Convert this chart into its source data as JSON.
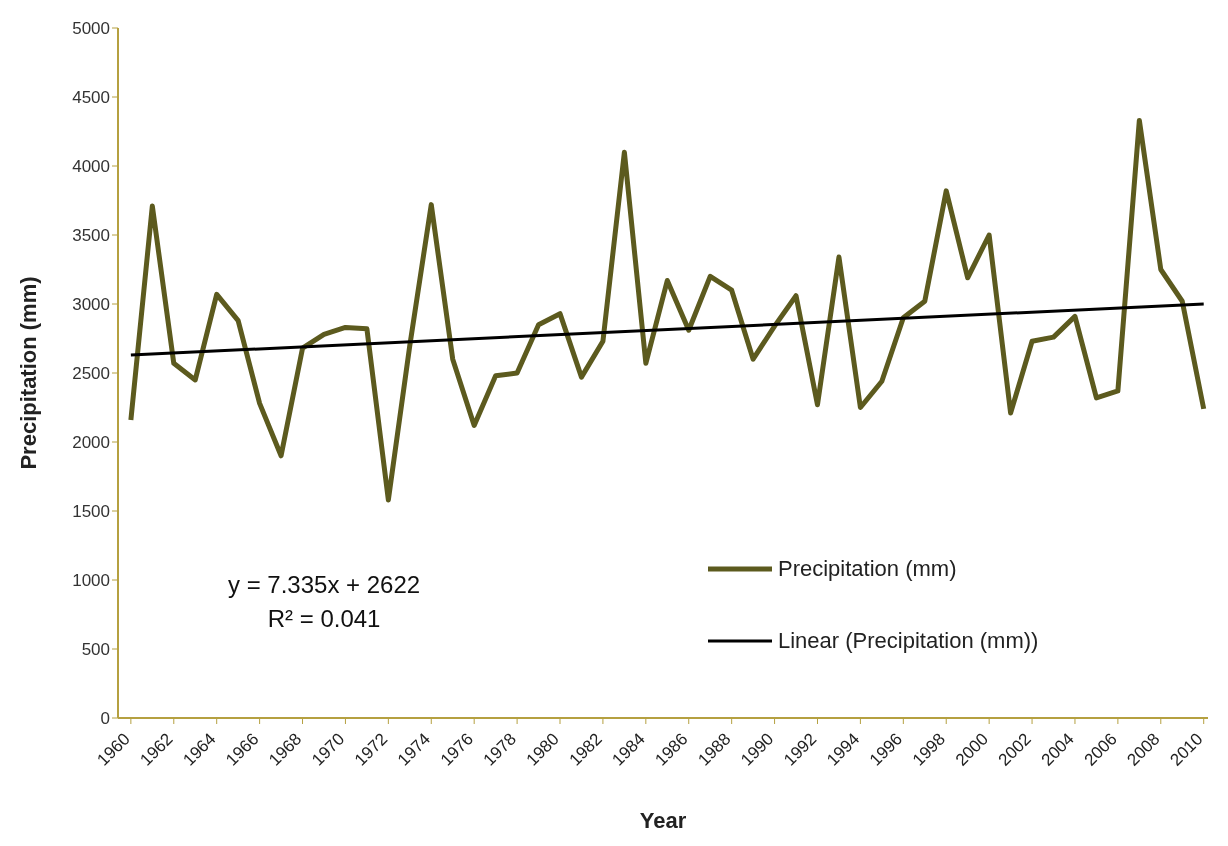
{
  "chart_data": {
    "type": "line",
    "xlabel": "Year",
    "ylabel": "Precipitation (mm)",
    "x": [
      1960,
      1961,
      1962,
      1963,
      1964,
      1965,
      1966,
      1967,
      1968,
      1969,
      1970,
      1971,
      1972,
      1973,
      1974,
      1975,
      1976,
      1977,
      1978,
      1979,
      1980,
      1981,
      1982,
      1983,
      1984,
      1985,
      1986,
      1987,
      1988,
      1989,
      1990,
      1991,
      1992,
      1993,
      1994,
      1995,
      1996,
      1997,
      1998,
      1999,
      2000,
      2001,
      2002,
      2003,
      2004,
      2005,
      2006,
      2007,
      2008,
      2009,
      2010
    ],
    "series": [
      {
        "name": "Precipitation (mm)",
        "color": "#5c5a1e",
        "values": [
          2160,
          3710,
          2570,
          2450,
          3070,
          2880,
          2280,
          1900,
          2680,
          2780,
          2830,
          2820,
          1580,
          2700,
          3720,
          2600,
          2120,
          2480,
          2500,
          2850,
          2930,
          2470,
          2730,
          4100,
          2570,
          3170,
          2810,
          3200,
          3100,
          2600,
          2840,
          3060,
          2270,
          3340,
          2250,
          2440,
          2900,
          3020,
          3820,
          3190,
          3500,
          2210,
          2730,
          2760,
          2910,
          2320,
          2370,
          4330,
          3250,
          3020,
          2240
        ]
      },
      {
        "name": "Linear (Precipitation (mm))",
        "type": "line",
        "color": "#000000",
        "x": [
          1960,
          2010
        ],
        "values": [
          2630,
          3000
        ]
      }
    ],
    "xlim": [
      1959.4,
      2010.2
    ],
    "xticks": [
      1960,
      1962,
      1964,
      1966,
      1968,
      1970,
      1972,
      1974,
      1976,
      1978,
      1980,
      1982,
      1984,
      1986,
      1988,
      1990,
      1992,
      1994,
      1996,
      1998,
      2000,
      2002,
      2004,
      2006,
      2008,
      2010
    ],
    "ylim": [
      0,
      5000
    ],
    "yticks": [
      0,
      500,
      1000,
      1500,
      2000,
      2500,
      3000,
      3500,
      4000,
      4500,
      5000
    ],
    "grid": false,
    "legend": "bottom right",
    "marker": "none",
    "line_style": "solid",
    "annotations": [
      "y = 7.335x + 2622",
      "R² = 0.041"
    ]
  }
}
